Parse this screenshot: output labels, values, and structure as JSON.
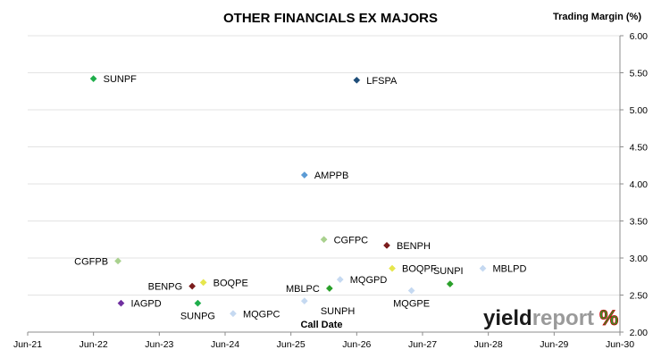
{
  "chart_data": {
    "type": "scatter",
    "title": "OTHER FINANCIALS EX MAJORS",
    "ylabel": "Trading Margin (%)",
    "xlabel": "Call Date",
    "x_ticks": [
      "Jun-21",
      "Jun-22",
      "Jun-23",
      "Jun-24",
      "Jun-25",
      "Jun-26",
      "Jun-27",
      "Jun-28",
      "Jun-29",
      "Jun-30"
    ],
    "xlim": [
      "2021-06-01",
      "2030-06-01"
    ],
    "ylim": [
      2.0,
      6.0
    ],
    "y_ticks": [
      "2.00",
      "2.50",
      "3.00",
      "3.50",
      "4.00",
      "4.50",
      "5.00",
      "5.50",
      "6.00"
    ],
    "y_axis_side": "right",
    "grid": true,
    "points": [
      {
        "name": "SUNPF",
        "x": "2022-06-01",
        "y": 5.42,
        "color": "#1fae4b",
        "label_pos": "right"
      },
      {
        "name": "LFSPA",
        "x": "2026-06-01",
        "y": 5.4,
        "color": "#1f4e79",
        "label_pos": "right"
      },
      {
        "name": "AMPPB",
        "x": "2025-08-15",
        "y": 4.12,
        "color": "#5b9bd5",
        "label_pos": "right"
      },
      {
        "name": "CGFPC",
        "x": "2025-12-01",
        "y": 3.25,
        "color": "#a9d18e",
        "label_pos": "right"
      },
      {
        "name": "BENPH",
        "x": "2026-11-15",
        "y": 3.17,
        "color": "#7b1c1c",
        "label_pos": "right"
      },
      {
        "name": "CGFPB",
        "x": "2022-10-15",
        "y": 2.96,
        "color": "#a9d18e",
        "label_pos": "left"
      },
      {
        "name": "BOQPF",
        "x": "2026-12-15",
        "y": 2.86,
        "color": "#e6e64c",
        "label_pos": "right"
      },
      {
        "name": "SUNPI",
        "x": "2027-11-01",
        "y": 2.65,
        "color": "#2aa02a",
        "label_pos": "above-left"
      },
      {
        "name": "MBLPD",
        "x": "2028-05-01",
        "y": 2.86,
        "color": "#c5d9f1",
        "label_pos": "right"
      },
      {
        "name": "BENPG",
        "x": "2023-12-01",
        "y": 2.62,
        "color": "#7b1c1c",
        "label_pos": "left"
      },
      {
        "name": "BOQPE",
        "x": "2024-02-01",
        "y": 2.67,
        "color": "#e6e64c",
        "label_pos": "right"
      },
      {
        "name": "MBLPC",
        "x": "2026-01-01",
        "y": 2.59,
        "color": "#2aa02a",
        "label_pos": "left"
      },
      {
        "name": "MQGPD",
        "x": "2026-03-01",
        "y": 2.71,
        "color": "#c5d9f1",
        "label_pos": "right"
      },
      {
        "name": "MQGPE",
        "x": "2027-04-01",
        "y": 2.56,
        "color": "#c5d9f1",
        "label_pos": "below"
      },
      {
        "name": "SUNPH",
        "x": "2025-08-15",
        "y": 2.42,
        "color": "#c5d9f1",
        "label_pos": "below-right"
      },
      {
        "name": "IAGPD",
        "x": "2022-11-01",
        "y": 2.39,
        "color": "#7030a0",
        "label_pos": "right"
      },
      {
        "name": "SUNPG",
        "x": "2024-01-01",
        "y": 2.39,
        "color": "#1fae4b",
        "label_pos": "below"
      },
      {
        "name": "MQGPC",
        "x": "2024-07-15",
        "y": 2.25,
        "color": "#c5d9f1",
        "label_pos": "right"
      }
    ]
  },
  "logo": {
    "part1": "yield",
    "part2": "report",
    "mark": "%",
    "color1": "#1a1a1a",
    "color2": "#9a9a9a",
    "mark_color": "#2aa02a",
    "mark_accent": "#c00000"
  }
}
